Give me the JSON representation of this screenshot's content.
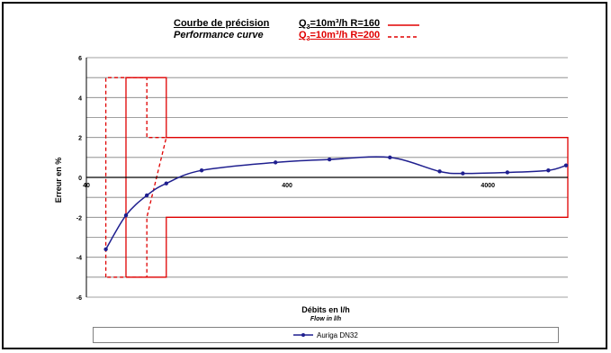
{
  "header": {
    "title_fr": "Courbe de précision",
    "title_en": "Performance curve",
    "r160_q": "Q",
    "r160_sub": "3",
    "r160_rest": "=10m³/h  R=160",
    "r200_q": "Q",
    "r200_sub": "3",
    "r200_rest": "=10m³/h  R=200"
  },
  "colors": {
    "series": "#1f1f8f",
    "envelope": "#e00000",
    "grid": "#808080",
    "axis": "#000000"
  },
  "chart_data": {
    "type": "line",
    "xscale": "log",
    "xlim": [
      40,
      10000
    ],
    "ylim": [
      -6,
      6
    ],
    "x_ticks": [
      {
        "value": 40,
        "label": "40"
      },
      {
        "value": 400,
        "label": "400"
      },
      {
        "value": 4000,
        "label": "4000"
      }
    ],
    "y_ticks": [
      {
        "value": 6,
        "label": "6"
      },
      {
        "value": 4,
        "label": "4"
      },
      {
        "value": 2,
        "label": "2"
      },
      {
        "value": 0,
        "label": "0"
      },
      {
        "value": -2,
        "label": "-2"
      },
      {
        "value": -4,
        "label": "-4"
      },
      {
        "value": -6,
        "label": "-6"
      }
    ],
    "ylabel": "Erreur en %",
    "xlabel": "Débits en l/h",
    "xlabel_en": "Flow in l/h",
    "grid": true,
    "legend_position": "bottom",
    "series": [
      {
        "name": "Auriga DN32",
        "x": [
          50,
          63,
          80,
          100,
          150,
          350,
          650,
          1300,
          2300,
          3000,
          5000,
          8000,
          9800
        ],
        "y": [
          -3.6,
          -1.9,
          -0.9,
          -0.3,
          0.35,
          0.75,
          0.9,
          1.0,
          0.3,
          0.2,
          0.25,
          0.35,
          0.6
        ]
      }
    ],
    "envelopes": [
      {
        "name": "Q3=10m³/h R=160",
        "style": "solid",
        "points": [
          [
            63,
            -5
          ],
          [
            63,
            5
          ],
          [
            100,
            5
          ],
          [
            100,
            2
          ],
          [
            10000,
            2
          ],
          [
            10000,
            -2
          ],
          [
            100,
            -2
          ],
          [
            100,
            -5
          ],
          [
            63,
            -5
          ]
        ]
      },
      {
        "name": "Q3=10m³/h R=200",
        "style": "dashed",
        "points": [
          [
            50,
            -5
          ],
          [
            50,
            5
          ],
          [
            80,
            5
          ],
          [
            80,
            2
          ],
          [
            100,
            2
          ],
          [
            80,
            -2
          ],
          [
            80,
            -5
          ],
          [
            50,
            -5
          ]
        ]
      }
    ]
  }
}
